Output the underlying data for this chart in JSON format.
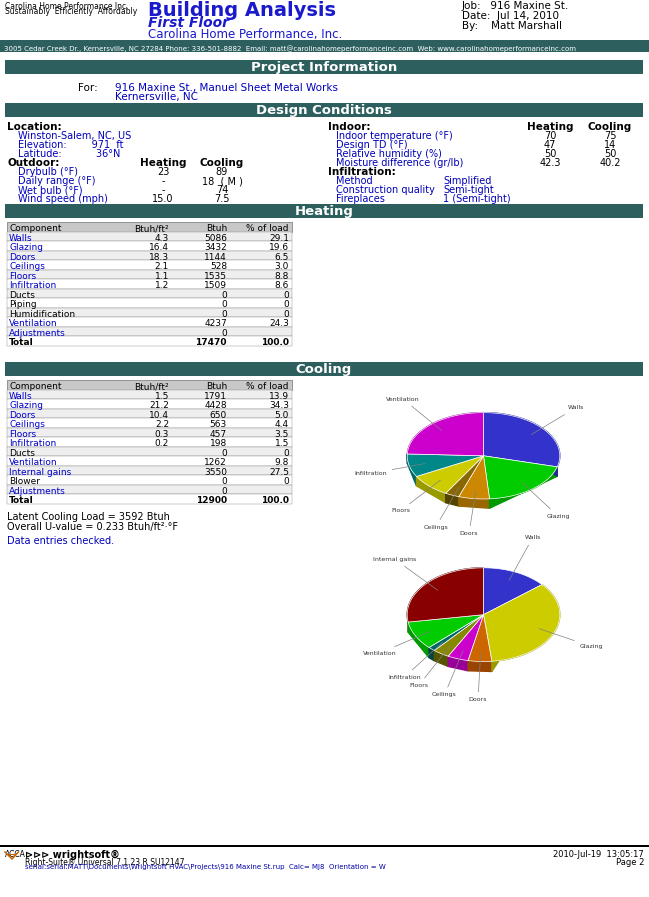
{
  "title": "Building Analysis",
  "subtitle": "First Floor",
  "company": "Carolina Home Performance, Inc.",
  "logo_line1": "Carolina Home Performance Inc.",
  "logo_line2": "Sustainably  Efficiently  Affordably",
  "job_info": [
    "Job:   916 Maxine St.",
    "Date:  Jul 14, 2010",
    "By:    Matt Marshall"
  ],
  "address_bar": "3005 Cedar Creek Dr., Kernersville, NC 27284 Phone: 336-501-8882  Email: matt@carolinahomeperformanceinc.com  Web: www.carolinahomeperformanceinc.com",
  "project_info_title": "Project Information",
  "project_for": "916 Maxine St., Manuel Sheet Metal Works",
  "project_for2": "Kernersville, NC",
  "design_conditions_title": "Design Conditions",
  "location_label": "Location:",
  "location_city": "Winston-Salem, NC, US",
  "elevation": "Elevation:        971  ft",
  "latitude": "Latitude:           36°N",
  "outdoor_label": "Outdoor:",
  "outdoor_headers": [
    "Heating",
    "Cooling"
  ],
  "outdoor_rows": [
    [
      "Drybulb (°F)",
      "23",
      "89"
    ],
    [
      "Daily range (°F)",
      "-",
      "18  ( M )"
    ],
    [
      "Wet bulb (°F)",
      "-",
      "74"
    ],
    [
      "Wind speed (mph)",
      "15.0",
      "7.5"
    ]
  ],
  "indoor_label": "Indoor:",
  "indoor_headers": [
    "Heating",
    "Cooling"
  ],
  "indoor_rows": [
    [
      "Indoor temperature (°F)",
      "70",
      "75"
    ],
    [
      "Design TD (°F)",
      "47",
      "14"
    ],
    [
      "Relative humidity (%)",
      "50",
      "50"
    ],
    [
      "Moisture difference (gr/lb)",
      "42.3",
      "40.2"
    ]
  ],
  "infiltration_label": "Infiltration:",
  "infiltration_rows": [
    [
      "Method",
      "Simplified"
    ],
    [
      "Construction quality",
      "Semi-tight"
    ],
    [
      "Fireplaces",
      "1 (Semi-tight)"
    ]
  ],
  "heating_title": "Heating",
  "heating_cols": [
    "Component",
    "Btuh/ft²",
    "Btuh",
    "% of load"
  ],
  "heating_rows": [
    [
      "Walls",
      "4.3",
      "5086",
      "29.1"
    ],
    [
      "Glazing",
      "16.4",
      "3432",
      "19.6"
    ],
    [
      "Doors",
      "18.3",
      "1144",
      "6.5"
    ],
    [
      "Ceilings",
      "2.1",
      "528",
      "3.0"
    ],
    [
      "Floors",
      "1.1",
      "1535",
      "8.8"
    ],
    [
      "Infiltration",
      "1.2",
      "1509",
      "8.6"
    ],
    [
      "Ducts",
      "",
      "0",
      "0"
    ],
    [
      "Piping",
      "",
      "0",
      "0"
    ],
    [
      "Humidification",
      "",
      "0",
      "0"
    ],
    [
      "Ventilation",
      "",
      "4237",
      "24.3"
    ],
    [
      "Adjustments",
      "",
      "0",
      ""
    ],
    [
      "Total",
      "",
      "17470",
      "100.0"
    ]
  ],
  "heating_pie_values": [
    29.1,
    19.6,
    6.5,
    3.0,
    8.8,
    8.6,
    24.3
  ],
  "heating_pie_labels": [
    "Walls",
    "Glazing",
    "Doors",
    "Ceilings",
    "Floors",
    "Infiltration",
    "Ventilation"
  ],
  "heating_pie_colors": [
    "#3333cc",
    "#00cc00",
    "#cc8800",
    "#886600",
    "#cccc00",
    "#008888",
    "#cc00cc"
  ],
  "heating_pie_depth_colors": [
    "#222299",
    "#009900",
    "#996600",
    "#554400",
    "#999900",
    "#006666",
    "#990099"
  ],
  "cooling_title": "Cooling",
  "cooling_cols": [
    "Component",
    "Btuh/ft²",
    "Btuh",
    "% of load"
  ],
  "cooling_rows": [
    [
      "Walls",
      "1.5",
      "1791",
      "13.9"
    ],
    [
      "Glazing",
      "21.2",
      "4428",
      "34.3"
    ],
    [
      "Doors",
      "10.4",
      "650",
      "5.0"
    ],
    [
      "Ceilings",
      "2.2",
      "563",
      "4.4"
    ],
    [
      "Floors",
      "0.3",
      "457",
      "3.5"
    ],
    [
      "Infiltration",
      "0.2",
      "198",
      "1.5"
    ],
    [
      "Ducts",
      "",
      "0",
      "0"
    ],
    [
      "Ventilation",
      "",
      "1262",
      "9.8"
    ],
    [
      "Internal gains",
      "",
      "3550",
      "27.5"
    ],
    [
      "Blower",
      "",
      "0",
      "0"
    ],
    [
      "Adjustments",
      "",
      "0",
      ""
    ],
    [
      "Total",
      "",
      "12900",
      "100.0"
    ]
  ],
  "cooling_pie_values": [
    13.9,
    34.3,
    5.0,
    4.4,
    3.5,
    1.5,
    9.8,
    27.5
  ],
  "cooling_pie_labels": [
    "Walls",
    "Glazing",
    "Doors",
    "Ceilings",
    "Floors",
    "Infiltration",
    "Ventilation",
    "Internal gains"
  ],
  "cooling_pie_colors": [
    "#3333cc",
    "#cccc00",
    "#cc6600",
    "#cc00cc",
    "#888800",
    "#006666",
    "#00cc00",
    "#880000"
  ],
  "cooling_pie_depth_colors": [
    "#222299",
    "#999900",
    "#994400",
    "#990099",
    "#555500",
    "#004444",
    "#009900",
    "#550000"
  ],
  "latent_load": "Latent Cooling Load = 3592 Btuh",
  "overall_u": "Overall U-value = 0.233 Btuh/ft²·°F",
  "data_entries": "Data entries checked.",
  "footer_datetime": "2010-Jul-19  13:05:17",
  "footer_serial": "serial:MATT\\Documents\\Wrightsoft HVAC\\Projects\\916 Maxine St.rup  Calc= MJ8  Orientation = W",
  "footer_software": "Right-Suite® Universal 7.1.23 R SU12147",
  "page": "Page 2",
  "section_bg": "#2d5f5f",
  "section_text": "#ffffff",
  "address_bg": "#2d5f5f",
  "blue_text": "#0000bb",
  "black_text": "#000000",
  "row_colors_heating": [
    "#0000cc",
    "#0000cc",
    "#0000cc",
    "#0000cc",
    "#0000cc",
    "#0000cc",
    "#000000",
    "#000000",
    "#000000",
    "#0000cc",
    "#0000cc",
    "#000000"
  ],
  "row_colors_cooling": [
    "#0000cc",
    "#0000cc",
    "#0000cc",
    "#0000cc",
    "#0000cc",
    "#0000cc",
    "#000000",
    "#0000cc",
    "#0000cc",
    "#000000",
    "#0000cc",
    "#000000"
  ]
}
